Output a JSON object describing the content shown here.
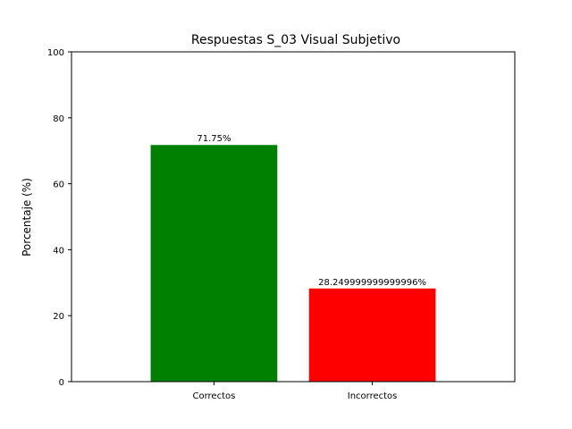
{
  "chart_data": {
    "type": "bar",
    "title": "Respuestas S_03 Visual Subjetivo",
    "xlabel": "",
    "ylabel": "Porcentaje (%)",
    "ylim": [
      0,
      100
    ],
    "yticks": [
      "0",
      "20",
      "40",
      "60",
      "80",
      "100"
    ],
    "ytick_values": [
      0,
      20,
      40,
      60,
      80,
      100
    ],
    "categories": [
      "Correctos",
      "Incorrectos"
    ],
    "values": [
      71.75,
      28.249999999999996
    ],
    "data_labels": [
      "71.75%",
      "28.249999999999996%"
    ],
    "colors": [
      "#008000",
      "#ff0000"
    ],
    "grid": false,
    "legend": "none"
  }
}
